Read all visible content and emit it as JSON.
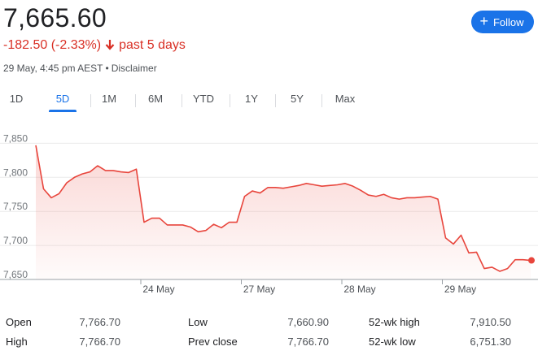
{
  "quote": {
    "price": "7,665.60",
    "change": "-182.50 (-2.33%)",
    "period": "past 5 days",
    "timestamp": "29 May, 4:45 pm AEST",
    "separator": "•",
    "disclaimer": "Disclaimer",
    "negative_color": "#d93025"
  },
  "follow_button": {
    "label": "Follow",
    "icon": "plus-icon",
    "color": "#1a73e8"
  },
  "tabs": [
    {
      "label": "1D",
      "active": false
    },
    {
      "label": "5D",
      "active": true
    },
    {
      "label": "1M",
      "active": false
    },
    {
      "label": "6M",
      "active": false
    },
    {
      "label": "YTD",
      "active": false
    },
    {
      "label": "1Y",
      "active": false
    },
    {
      "label": "5Y",
      "active": false
    },
    {
      "label": "Max",
      "active": false
    }
  ],
  "chart_data": {
    "type": "area",
    "title": "",
    "xlabel": "",
    "ylabel": "",
    "x_tick_labels": [
      "24 May",
      "27 May",
      "28 May",
      "29 May"
    ],
    "y_ticks": [
      7650,
      7700,
      7750,
      7800,
      7850
    ],
    "y_tick_labels": [
      "7,650",
      "7,700",
      "7,750",
      "7,800",
      "7,850"
    ],
    "ylim": [
      7650,
      7860
    ],
    "grid": true,
    "line_color": "#e8453c",
    "series": [
      {
        "values": [
          7847,
          7783,
          7770,
          7776,
          7792,
          7800,
          7805,
          7808,
          7817,
          7810,
          7810,
          7808,
          7807,
          7812,
          7734,
          7740,
          7740,
          7730,
          7730,
          7730,
          7727,
          7720,
          7722,
          7731,
          7726,
          7734,
          7734,
          7772,
          7780,
          7777,
          7785,
          7785,
          7784,
          7786,
          7788,
          7791,
          7789,
          7787,
          7788,
          7789,
          7791,
          7787,
          7781,
          7774,
          7772,
          7775,
          7770,
          7768,
          7770,
          7770,
          7771,
          7772,
          7768,
          7711,
          7702,
          7715,
          7689,
          7690,
          7666,
          7668,
          7662,
          7666,
          7679,
          7679,
          7678
        ]
      }
    ],
    "last_value": 7678
  },
  "stats": [
    {
      "label": "Open",
      "value": "7,766.70"
    },
    {
      "label": "High",
      "value": "7,766.70"
    },
    {
      "label": "Low",
      "value": "7,660.90"
    },
    {
      "label": "Prev close",
      "value": "7,766.70"
    },
    {
      "label": "52-wk high",
      "value": "7,910.50"
    },
    {
      "label": "52-wk low",
      "value": "6,751.30"
    }
  ]
}
